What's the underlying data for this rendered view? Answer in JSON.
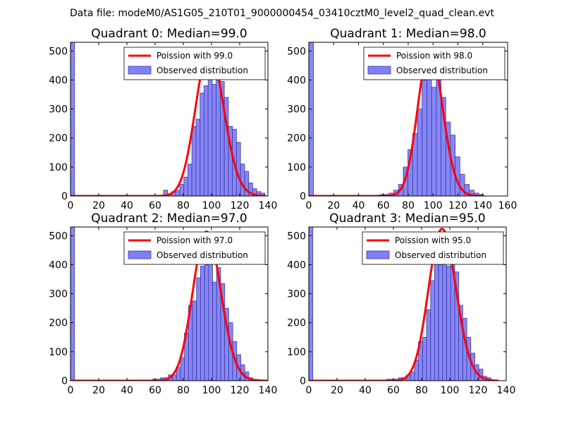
{
  "suptitle": "Data file: modeM0/AS1G05_210T01_9000000454_03410cztM0_level2_quad_clean.evt",
  "colors": {
    "bar_fill": "#7f7ff7",
    "bar_edge": "#3a3aa0",
    "curve": "#ff0000",
    "axes": "#000000"
  },
  "chart_data": [
    {
      "type": "bar",
      "title": "Quadrant 0: Median=99.0",
      "xlim": [
        0,
        140
      ],
      "ylim": [
        0,
        530
      ],
      "xticks": [
        "0",
        "20",
        "40",
        "60",
        "80",
        "100",
        "120",
        "140"
      ],
      "yticks": [
        "0",
        "100",
        "200",
        "300",
        "400",
        "500"
      ],
      "legend": {
        "position": "top-right",
        "line_label": "Poission with 99.0",
        "bar_label": "Observed distribution"
      },
      "bin_width": 2.87,
      "bins": [
        {
          "x": 0,
          "y": 530
        },
        {
          "x": 66,
          "y": 20
        },
        {
          "x": 68.9,
          "y": 5
        },
        {
          "x": 71.7,
          "y": 15
        },
        {
          "x": 74.6,
          "y": 20
        },
        {
          "x": 77.5,
          "y": 40
        },
        {
          "x": 80.4,
          "y": 65
        },
        {
          "x": 83.2,
          "y": 110
        },
        {
          "x": 86.1,
          "y": 240
        },
        {
          "x": 89.0,
          "y": 265
        },
        {
          "x": 91.9,
          "y": 355
        },
        {
          "x": 94.7,
          "y": 380
        },
        {
          "x": 97.6,
          "y": 480
        },
        {
          "x": 100.5,
          "y": 385
        },
        {
          "x": 103.3,
          "y": 445
        },
        {
          "x": 106.2,
          "y": 395
        },
        {
          "x": 109.1,
          "y": 340
        },
        {
          "x": 112.0,
          "y": 240
        },
        {
          "x": 114.8,
          "y": 230
        },
        {
          "x": 117.7,
          "y": 185
        },
        {
          "x": 120.6,
          "y": 110
        },
        {
          "x": 123.5,
          "y": 85
        },
        {
          "x": 126.3,
          "y": 45
        },
        {
          "x": 129.2,
          "y": 25
        },
        {
          "x": 132.1,
          "y": 15
        },
        {
          "x": 135.0,
          "y": 10
        }
      ],
      "poisson_mean": 99.0,
      "curve_scale": 12600,
      "curve_range": [
        0,
        138
      ]
    },
    {
      "type": "bar",
      "title": "Quadrant 1: Median=98.0",
      "xlim": [
        0,
        160
      ],
      "ylim": [
        0,
        530
      ],
      "xticks": [
        "0",
        "20",
        "40",
        "60",
        "80",
        "100",
        "120",
        "140",
        "160"
      ],
      "yticks": [
        "0",
        "100",
        "200",
        "300",
        "400",
        "500"
      ],
      "legend": {
        "position": "top-right",
        "line_label": "Poission with 98.0",
        "bar_label": "Observed distribution"
      },
      "bin_width": 3.8,
      "bins": [
        {
          "x": 0,
          "y": 530
        },
        {
          "x": 57,
          "y": 5
        },
        {
          "x": 60.8,
          "y": 5
        },
        {
          "x": 64.6,
          "y": 10
        },
        {
          "x": 68.4,
          "y": 20
        },
        {
          "x": 72.2,
          "y": 40
        },
        {
          "x": 76.0,
          "y": 100
        },
        {
          "x": 79.8,
          "y": 160
        },
        {
          "x": 83.6,
          "y": 215
        },
        {
          "x": 87.4,
          "y": 300
        },
        {
          "x": 91.2,
          "y": 400
        },
        {
          "x": 95.0,
          "y": 440
        },
        {
          "x": 98.8,
          "y": 375
        },
        {
          "x": 102.6,
          "y": 420
        },
        {
          "x": 106.4,
          "y": 340
        },
        {
          "x": 110.2,
          "y": 255
        },
        {
          "x": 114.0,
          "y": 210
        },
        {
          "x": 117.8,
          "y": 135
        },
        {
          "x": 121.6,
          "y": 75
        },
        {
          "x": 125.4,
          "y": 40
        },
        {
          "x": 129.2,
          "y": 20
        },
        {
          "x": 133.0,
          "y": 10
        },
        {
          "x": 136.8,
          "y": 5
        }
      ],
      "poisson_mean": 98.0,
      "curve_scale": 12650,
      "curve_range": [
        0,
        140
      ]
    },
    {
      "type": "bar",
      "title": "Quadrant 2: Median=97.0",
      "xlim": [
        0,
        140
      ],
      "ylim": [
        0,
        530
      ],
      "xticks": [
        "0",
        "20",
        "40",
        "60",
        "80",
        "100",
        "120",
        "140"
      ],
      "yticks": [
        "0",
        "100",
        "200",
        "300",
        "400",
        "500"
      ],
      "legend": {
        "position": "top-right",
        "line_label": "Poission with 97.0",
        "bar_label": "Observed distribution"
      },
      "bin_width": 2.85,
      "bins": [
        {
          "x": 0,
          "y": 530
        },
        {
          "x": 58,
          "y": 5
        },
        {
          "x": 60.9,
          "y": 5
        },
        {
          "x": 63.7,
          "y": 10
        },
        {
          "x": 66.6,
          "y": 10
        },
        {
          "x": 69.4,
          "y": 20
        },
        {
          "x": 72.3,
          "y": 20
        },
        {
          "x": 75.1,
          "y": 45
        },
        {
          "x": 78.0,
          "y": 80
        },
        {
          "x": 80.8,
          "y": 165
        },
        {
          "x": 83.7,
          "y": 260
        },
        {
          "x": 86.5,
          "y": 275
        },
        {
          "x": 89.4,
          "y": 355
        },
        {
          "x": 92.2,
          "y": 395
        },
        {
          "x": 95.1,
          "y": 400
        },
        {
          "x": 97.9,
          "y": 490
        },
        {
          "x": 100.8,
          "y": 340
        },
        {
          "x": 103.6,
          "y": 390
        },
        {
          "x": 106.5,
          "y": 335
        },
        {
          "x": 109.3,
          "y": 250
        },
        {
          "x": 112.2,
          "y": 200
        },
        {
          "x": 115.0,
          "y": 135
        },
        {
          "x": 117.9,
          "y": 90
        },
        {
          "x": 120.7,
          "y": 55
        },
        {
          "x": 123.6,
          "y": 30
        },
        {
          "x": 126.4,
          "y": 10
        },
        {
          "x": 129.3,
          "y": 5
        }
      ],
      "poisson_mean": 97.0,
      "curve_scale": 12700,
      "curve_range": [
        0,
        140
      ]
    },
    {
      "type": "bar",
      "title": "Quadrant 3: Median=95.0",
      "xlim": [
        0,
        140
      ],
      "ylim": [
        0,
        530
      ],
      "xticks": [
        "0",
        "20",
        "40",
        "60",
        "80",
        "100",
        "120",
        "140"
      ],
      "yticks": [
        "0",
        "100",
        "200",
        "300",
        "400",
        "500"
      ],
      "legend": {
        "position": "top-right",
        "line_label": "Poission with 95.0",
        "bar_label": "Observed distribution"
      },
      "bin_width": 2.85,
      "bins": [
        {
          "x": 0,
          "y": 530
        },
        {
          "x": 55,
          "y": 5
        },
        {
          "x": 57.9,
          "y": 5
        },
        {
          "x": 60.7,
          "y": 5
        },
        {
          "x": 63.6,
          "y": 10
        },
        {
          "x": 66.4,
          "y": 10
        },
        {
          "x": 69.3,
          "y": 20
        },
        {
          "x": 72.1,
          "y": 30
        },
        {
          "x": 75.0,
          "y": 70
        },
        {
          "x": 77.8,
          "y": 135
        },
        {
          "x": 80.7,
          "y": 150
        },
        {
          "x": 83.5,
          "y": 245
        },
        {
          "x": 86.4,
          "y": 345
        },
        {
          "x": 89.2,
          "y": 415
        },
        {
          "x": 92.1,
          "y": 400
        },
        {
          "x": 94.9,
          "y": 475
        },
        {
          "x": 97.8,
          "y": 395
        },
        {
          "x": 100.6,
          "y": 430
        },
        {
          "x": 103.5,
          "y": 375
        },
        {
          "x": 106.3,
          "y": 260
        },
        {
          "x": 109.2,
          "y": 215
        },
        {
          "x": 112.0,
          "y": 150
        },
        {
          "x": 114.9,
          "y": 95
        },
        {
          "x": 117.7,
          "y": 55
        },
        {
          "x": 120.6,
          "y": 40
        },
        {
          "x": 123.4,
          "y": 15
        },
        {
          "x": 126.3,
          "y": 10
        }
      ],
      "poisson_mean": 95.0,
      "curve_scale": 12800,
      "curve_range": [
        0,
        134
      ]
    }
  ]
}
